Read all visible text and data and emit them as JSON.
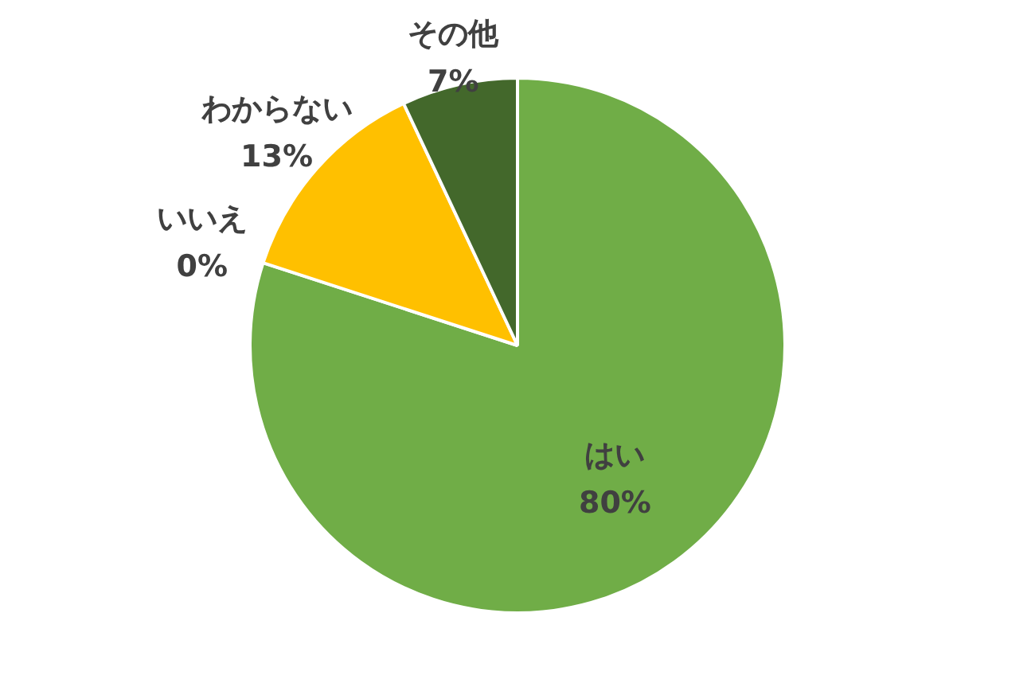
{
  "chart_data": {
    "type": "pie",
    "categories": [
      "はい",
      "いいえ",
      "わからない",
      "その他"
    ],
    "values": [
      80,
      0,
      13,
      7
    ],
    "colors": [
      "#70ad47",
      "#4472c4",
      "#ffc000",
      "#43682b"
    ],
    "value_labels": [
      "80%",
      "0%",
      "13%",
      "7%"
    ],
    "legend": false
  }
}
